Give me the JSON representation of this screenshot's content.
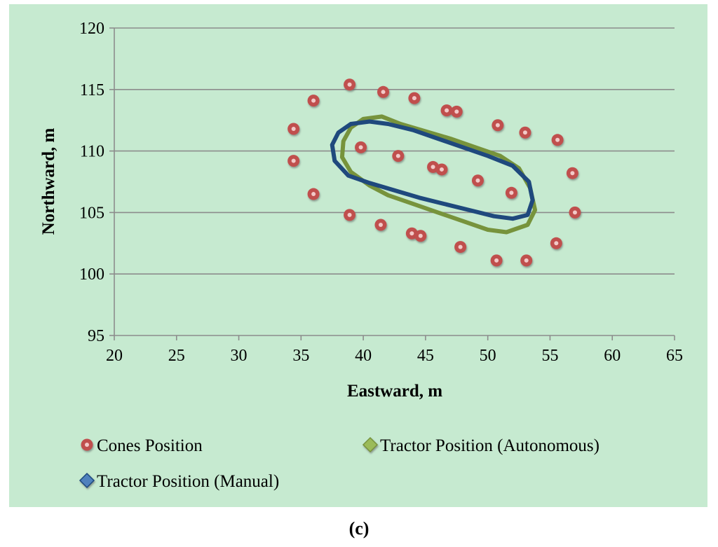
{
  "caption": "(c)",
  "colors": {
    "background": "#c6ead0",
    "grid": "#8c8c8c",
    "cones": "#c0504d",
    "autonomous": "#77933c",
    "manual": "#1f497d"
  },
  "chart_data": {
    "type": "scatter",
    "title": "",
    "xlabel": "Eastward, m",
    "ylabel": "Northward, m",
    "xlim": [
      20,
      65
    ],
    "ylim": [
      95,
      120
    ],
    "xticks": [
      20,
      25,
      30,
      35,
      40,
      45,
      50,
      55,
      60,
      65
    ],
    "yticks": [
      95,
      100,
      105,
      110,
      115,
      120
    ],
    "grid": "horizontal",
    "legend_position": "bottom",
    "series": [
      {
        "name": "Cones Position",
        "style": "markers",
        "points": [
          [
            38.9,
            115.4
          ],
          [
            41.6,
            114.8
          ],
          [
            44.1,
            114.3
          ],
          [
            36.0,
            114.1
          ],
          [
            46.7,
            113.3
          ],
          [
            47.5,
            113.2
          ],
          [
            34.4,
            111.8
          ],
          [
            50.8,
            112.1
          ],
          [
            53.0,
            111.5
          ],
          [
            55.6,
            110.9
          ],
          [
            39.8,
            110.3
          ],
          [
            42.8,
            109.6
          ],
          [
            34.4,
            109.2
          ],
          [
            45.6,
            108.7
          ],
          [
            46.3,
            108.5
          ],
          [
            56.8,
            108.2
          ],
          [
            49.2,
            107.6
          ],
          [
            36.0,
            106.5
          ],
          [
            51.9,
            106.6
          ],
          [
            38.9,
            104.8
          ],
          [
            57.0,
            105.0
          ],
          [
            41.4,
            104.0
          ],
          [
            43.9,
            103.3
          ],
          [
            44.6,
            103.1
          ],
          [
            55.5,
            102.5
          ],
          [
            47.8,
            102.2
          ],
          [
            50.7,
            101.1
          ],
          [
            53.1,
            101.1
          ]
        ]
      },
      {
        "name": "Tractor Position (Autonomous)",
        "style": "line",
        "points": [
          [
            40.0,
            112.6
          ],
          [
            41.5,
            112.8
          ],
          [
            43.0,
            112.2
          ],
          [
            45.0,
            111.6
          ],
          [
            47.0,
            111.0
          ],
          [
            49.0,
            110.3
          ],
          [
            51.0,
            109.6
          ],
          [
            52.5,
            108.6
          ],
          [
            53.4,
            107.0
          ],
          [
            53.8,
            105.2
          ],
          [
            53.2,
            104.0
          ],
          [
            51.5,
            103.4
          ],
          [
            50.0,
            103.6
          ],
          [
            48.0,
            104.3
          ],
          [
            46.0,
            105.0
          ],
          [
            44.0,
            105.7
          ],
          [
            42.0,
            106.4
          ],
          [
            40.5,
            107.2
          ],
          [
            39.0,
            108.3
          ],
          [
            38.3,
            109.5
          ],
          [
            38.4,
            110.8
          ],
          [
            39.0,
            111.9
          ],
          [
            40.0,
            112.6
          ]
        ]
      },
      {
        "name": "Tractor Position (Manual)",
        "style": "line",
        "points": [
          [
            38.0,
            111.5
          ],
          [
            39.0,
            112.2
          ],
          [
            40.5,
            112.4
          ],
          [
            42.0,
            112.2
          ],
          [
            44.0,
            111.7
          ],
          [
            46.0,
            111.0
          ],
          [
            48.0,
            110.3
          ],
          [
            50.0,
            109.6
          ],
          [
            52.0,
            108.8
          ],
          [
            53.3,
            107.5
          ],
          [
            53.6,
            106.0
          ],
          [
            53.2,
            104.8
          ],
          [
            52.0,
            104.5
          ],
          [
            50.5,
            104.7
          ],
          [
            48.5,
            105.2
          ],
          [
            46.5,
            105.7
          ],
          [
            44.5,
            106.2
          ],
          [
            42.5,
            106.8
          ],
          [
            40.5,
            107.4
          ],
          [
            38.8,
            108.0
          ],
          [
            37.7,
            109.2
          ],
          [
            37.5,
            110.5
          ],
          [
            38.0,
            111.5
          ]
        ]
      }
    ]
  }
}
